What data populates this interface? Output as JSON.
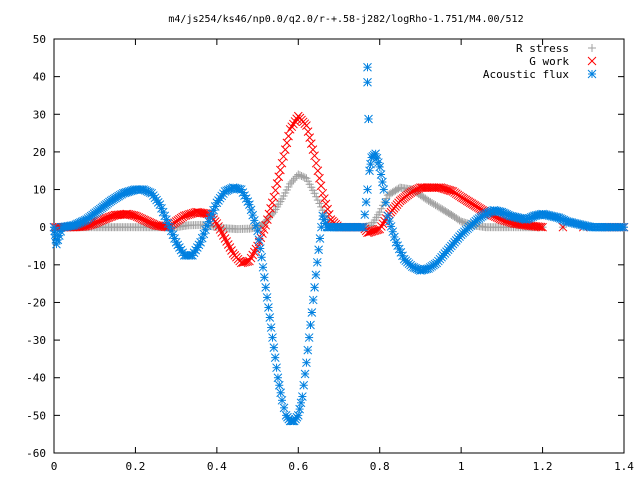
{
  "chart_data": {
    "type": "scatter",
    "title": "m4/js254/ks46/np0.0/q2.0/r-+.58-j282/logRho-1.751/M4.00/512",
    "xlabel": "",
    "ylabel": "",
    "xlim": [
      0,
      1.4
    ],
    "ylim": [
      -60,
      50
    ],
    "grid": false,
    "legend_position": "top-right",
    "x_ticks": [
      0,
      0.2,
      0.4,
      0.6,
      0.8,
      1,
      1.2,
      1.4
    ],
    "x_tick_labels": [
      "0",
      "0.2",
      "0.4",
      "0.6",
      "0.8",
      "1",
      "1.2",
      "1.4"
    ],
    "y_ticks": [
      50,
      40,
      30,
      20,
      10,
      0,
      -10,
      -20,
      -30,
      -40,
      -50,
      -60
    ],
    "y_tick_labels": [
      "50",
      "40",
      "30",
      "20",
      "10",
      "0",
      "-10",
      "-20",
      "-30",
      "-40",
      "-50",
      "-60"
    ],
    "series": [
      {
        "name": "R stress",
        "marker": "plus",
        "color": "#a0a0a0",
        "x": [
          0.0,
          0.02,
          0.05,
          0.08,
          0.1,
          0.13,
          0.16,
          0.18,
          0.2,
          0.22,
          0.25,
          0.28,
          0.3,
          0.33,
          0.36,
          0.38,
          0.4,
          0.42,
          0.45,
          0.48,
          0.5,
          0.51,
          0.52,
          0.54,
          0.56,
          0.58,
          0.6,
          0.62,
          0.64,
          0.66,
          0.68,
          0.7,
          0.72,
          0.74,
          0.76,
          0.78,
          0.8,
          0.82,
          0.85,
          0.88,
          0.9,
          0.92,
          0.95,
          0.98,
          1.0,
          1.03,
          1.06,
          1.08,
          1.1,
          1.12,
          1.15,
          1.18,
          1.2,
          1.25,
          1.3,
          1.35,
          1.4
        ],
        "y": [
          0,
          0,
          0,
          0,
          0,
          0,
          0,
          0,
          0,
          0,
          0,
          0,
          0,
          0.5,
          0.6,
          0.4,
          0,
          -0.3,
          -0.5,
          -0.4,
          0,
          0.5,
          1.5,
          4,
          7.5,
          11.5,
          14,
          13,
          9,
          4.5,
          0.5,
          0,
          0,
          0,
          0,
          0.5,
          4,
          8.5,
          10.5,
          10,
          8.5,
          7,
          5,
          3,
          1.5,
          0.5,
          0,
          0,
          0,
          0,
          0,
          0,
          0,
          0,
          0,
          0,
          0
        ]
      },
      {
        "name": "G work",
        "marker": "cross",
        "color": "#ff0000",
        "x": [
          0.0,
          0.02,
          0.05,
          0.08,
          0.1,
          0.12,
          0.15,
          0.18,
          0.2,
          0.22,
          0.25,
          0.28,
          0.3,
          0.32,
          0.35,
          0.38,
          0.4,
          0.42,
          0.44,
          0.46,
          0.48,
          0.5,
          0.52,
          0.54,
          0.56,
          0.58,
          0.6,
          0.62,
          0.64,
          0.66,
          0.68,
          0.7,
          0.72,
          0.74,
          0.76,
          0.77,
          0.8,
          0.82,
          0.85,
          0.88,
          0.9,
          0.92,
          0.95,
          0.98,
          1.0,
          1.03,
          1.06,
          1.08,
          1.1,
          1.13,
          1.16,
          1.2,
          1.25,
          1.3,
          1.35,
          1.4
        ],
        "y": [
          0,
          0,
          0,
          0.3,
          1,
          2,
          3.2,
          3.5,
          3,
          2,
          0.5,
          0,
          1.5,
          3,
          4,
          3.5,
          1,
          -3,
          -7,
          -9.5,
          -9,
          -5,
          0.5,
          8,
          17,
          26,
          29.5,
          27,
          19,
          9,
          2,
          0,
          0,
          0,
          0,
          -1.5,
          -0.5,
          3,
          7,
          9.5,
          10.5,
          10.5,
          10.5,
          9.5,
          8,
          6,
          4,
          3,
          2,
          1,
          0.5,
          0,
          0,
          0,
          0,
          0
        ]
      },
      {
        "name": "Acoustic flux",
        "marker": "star",
        "color": "#0080e0",
        "x": [
          0.0,
          0.003,
          0.006,
          0.02,
          0.05,
          0.08,
          0.11,
          0.14,
          0.17,
          0.2,
          0.22,
          0.24,
          0.26,
          0.28,
          0.3,
          0.32,
          0.34,
          0.36,
          0.38,
          0.4,
          0.42,
          0.44,
          0.46,
          0.48,
          0.5,
          0.51,
          0.52,
          0.53,
          0.54,
          0.55,
          0.56,
          0.57,
          0.58,
          0.59,
          0.6,
          0.61,
          0.62,
          0.63,
          0.64,
          0.65,
          0.66,
          0.67,
          0.68,
          0.7,
          0.72,
          0.74,
          0.76,
          0.77,
          0.77,
          0.77,
          0.775,
          0.78,
          0.79,
          0.8,
          0.81,
          0.82,
          0.84,
          0.86,
          0.88,
          0.9,
          0.92,
          0.94,
          0.96,
          0.98,
          1.0,
          1.02,
          1.04,
          1.06,
          1.08,
          1.1,
          1.12,
          1.14,
          1.16,
          1.18,
          1.2,
          1.22,
          1.24,
          1.26,
          1.28,
          1.3,
          1.32,
          1.35,
          1.4
        ],
        "y": [
          0,
          -2,
          -4.5,
          0,
          0.5,
          2,
          4.5,
          7,
          9,
          10,
          10,
          9,
          6,
          1,
          -4,
          -7.5,
          -7.5,
          -4,
          1.5,
          6.5,
          9.5,
          10.5,
          10,
          6,
          -1,
          -8,
          -16,
          -24,
          -32,
          -40,
          -46,
          -50,
          -51.5,
          -51.5,
          -50,
          -45,
          -36,
          -26,
          -16,
          -6,
          3,
          0,
          0,
          0,
          0,
          0,
          0,
          10,
          38.5,
          42.5,
          15,
          18.5,
          19.5,
          16,
          10,
          3,
          -4,
          -8.5,
          -10.5,
          -11.5,
          -11,
          -9.5,
          -7,
          -4.5,
          -2,
          0,
          2,
          3.5,
          4.5,
          4,
          3,
          2.5,
          2,
          3,
          3.5,
          3,
          2.5,
          1.5,
          1,
          0.5,
          0,
          0,
          0
        ]
      }
    ]
  }
}
